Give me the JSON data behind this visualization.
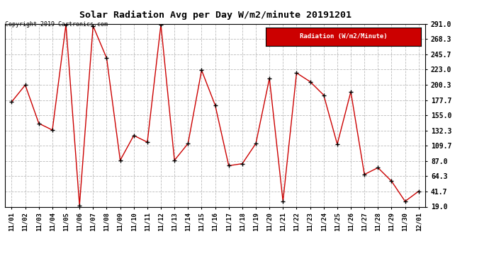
{
  "title": "Solar Radiation Avg per Day W/m2/minute 20191201",
  "copyright": "Copyright 2019 Cartronics.com",
  "legend_label": "Radiation (W/m2/Minute)",
  "dates": [
    "11/01",
    "11/02",
    "11/03",
    "11/04",
    "11/05",
    "11/06",
    "11/07",
    "11/08",
    "11/09",
    "11/10",
    "11/11",
    "11/12",
    "11/13",
    "11/14",
    "11/15",
    "11/16",
    "11/17",
    "11/18",
    "11/19",
    "11/20",
    "11/21",
    "11/22",
    "11/23",
    "11/24",
    "11/25",
    "11/26",
    "11/27",
    "11/28",
    "11/29",
    "11/30",
    "12/01"
  ],
  "values": [
    175,
    200,
    143,
    133,
    290,
    21,
    288,
    240,
    88,
    125,
    115,
    290,
    88,
    113,
    222,
    170,
    80,
    83,
    113,
    210,
    27,
    218,
    205,
    185,
    112,
    190,
    67,
    77,
    57,
    27,
    42
  ],
  "line_color": "#cc0000",
  "marker_color": "#000000",
  "bg_color": "#ffffff",
  "grid_color": "#aaaaaa",
  "legend_bg": "#cc0000",
  "legend_text_color": "#ffffff",
  "ylim": [
    19.0,
    291.0
  ],
  "yticks": [
    19.0,
    41.7,
    64.3,
    87.0,
    109.7,
    132.3,
    155.0,
    177.7,
    200.3,
    223.0,
    245.7,
    268.3,
    291.0
  ]
}
